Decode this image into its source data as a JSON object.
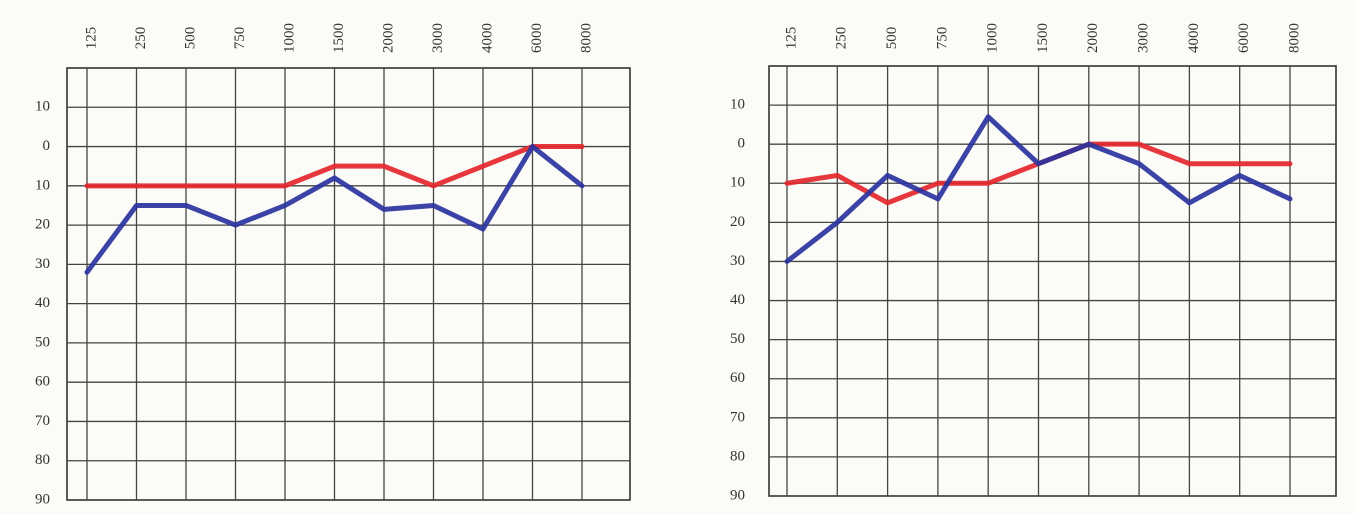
{
  "chart_data": [
    {
      "type": "line",
      "categories": [
        "125",
        "250",
        "500",
        "750",
        "1000",
        "1500",
        "2000",
        "3000",
        "4000",
        "6000",
        "8000"
      ],
      "series": [
        {
          "color": "#e3262b",
          "values": [
            10,
            10,
            10,
            10,
            10,
            5,
            5,
            10,
            5,
            0,
            0
          ]
        },
        {
          "color": "#2b339f",
          "values": [
            32,
            15,
            15,
            20,
            15,
            8,
            16,
            15,
            21,
            0,
            10
          ]
        }
      ],
      "ylim": [
        -20,
        90
      ],
      "y_inverted": true,
      "yticks": [
        {
          "value": -10,
          "label": "10"
        },
        0,
        10,
        20,
        30,
        40,
        50,
        60,
        70,
        80,
        90
      ],
      "grid": true
    },
    {
      "type": "line",
      "categories": [
        "125",
        "250",
        "500",
        "750",
        "1000",
        "1500",
        "2000",
        "3000",
        "4000",
        "6000",
        "8000"
      ],
      "series": [
        {
          "color": "#e3262b",
          "values": [
            10,
            8,
            15,
            10,
            10,
            5,
            0,
            0,
            5,
            5,
            5
          ]
        },
        {
          "color": "#2b339f",
          "values": [
            30,
            20,
            8,
            14,
            -7,
            5,
            0,
            5,
            15,
            8,
            14
          ]
        }
      ],
      "ylim": [
        -20,
        90
      ],
      "y_inverted": true,
      "yticks": [
        {
          "value": -10,
          "label": "10"
        },
        0,
        10,
        20,
        30,
        40,
        50,
        60,
        70,
        80,
        90
      ],
      "grid": true
    }
  ]
}
